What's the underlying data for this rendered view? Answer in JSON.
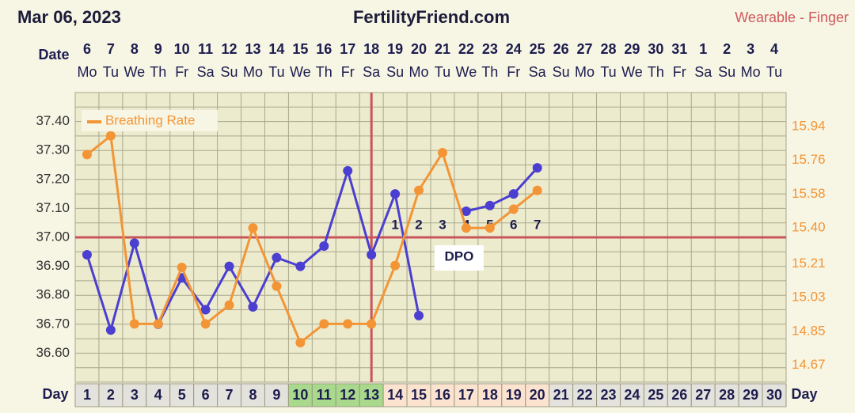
{
  "header": {
    "date": "Mar 06, 2023",
    "site": "FertilityFriend.com",
    "source": "Wearable - Finger"
  },
  "chart_data": {
    "type": "line",
    "x_label": "Day",
    "date_label": "Date",
    "categories": [
      "1",
      "2",
      "3",
      "4",
      "5",
      "6",
      "7",
      "8",
      "9",
      "10",
      "11",
      "12",
      "13",
      "14",
      "15",
      "16",
      "17",
      "18",
      "19",
      "20",
      "21",
      "22",
      "23",
      "24",
      "25",
      "26",
      "27",
      "28",
      "29",
      "30"
    ],
    "dates": [
      "6",
      "7",
      "8",
      "9",
      "10",
      "11",
      "12",
      "13",
      "14",
      "15",
      "16",
      "17",
      "18",
      "19",
      "20",
      "21",
      "22",
      "23",
      "24",
      "25",
      "26",
      "27",
      "28",
      "29",
      "30",
      "31",
      "1",
      "2",
      "3",
      "4"
    ],
    "weekdays": [
      "Mo",
      "Tu",
      "We",
      "Th",
      "Fr",
      "Sa",
      "Su",
      "Mo",
      "Tu",
      "We",
      "Th",
      "Fr",
      "Sa",
      "Su",
      "Mo",
      "Tu",
      "We",
      "Th",
      "Fr",
      "Sa",
      "Su",
      "Mo",
      "Tu",
      "We",
      "Th",
      "Fr",
      "Sa",
      "Su",
      "Mo",
      "Tu"
    ],
    "day_colors": [
      "#e4e2dc",
      "#e4e2dc",
      "#e4e2dc",
      "#e4e2dc",
      "#e4e2dc",
      "#e4e2dc",
      "#e4e2dc",
      "#e4e2dc",
      "#e4e2dc",
      "#a9d98c",
      "#a9d98c",
      "#a9d98c",
      "#a9d98c",
      "#fbe3cf",
      "#fbe3cf",
      "#fbe3cf",
      "#fbe3cf",
      "#fbe3cf",
      "#fbe3cf",
      "#fbe3cf",
      "#e4e2dc",
      "#e4e2dc",
      "#e4e2dc",
      "#e4e2dc",
      "#e4e2dc",
      "#e4e2dc",
      "#e4e2dc",
      "#e4e2dc",
      "#e4e2dc",
      "#e4e2dc"
    ],
    "ylim": [
      36.5,
      37.5
    ],
    "yticks": [
      {
        "value": 36.6,
        "label": "36.60"
      },
      {
        "value": 36.7,
        "label": "36.70"
      },
      {
        "value": 36.8,
        "label": "36.80"
      },
      {
        "value": 36.9,
        "label": "36.90"
      },
      {
        "value": 37.0,
        "label": "37.00"
      },
      {
        "value": 37.1,
        "label": "37.10"
      },
      {
        "value": 37.2,
        "label": "37.20"
      },
      {
        "value": 37.3,
        "label": "37.30"
      },
      {
        "value": 37.4,
        "label": "37.40"
      }
    ],
    "y_grid": [
      36.5,
      36.55,
      36.6,
      36.65,
      36.7,
      36.75,
      36.8,
      36.85,
      36.9,
      36.95,
      37.0,
      37.05,
      37.1,
      37.15,
      37.2,
      37.25,
      37.3,
      37.35,
      37.4,
      37.45,
      37.5
    ],
    "y2lim": [
      14.58,
      16.12
    ],
    "y2ticks": [
      14.67,
      14.85,
      15.03,
      15.21,
      {
        "value": 15.4,
        "label": "15.40"
      },
      15.58,
      15.76,
      15.94
    ],
    "coverline": 37.0,
    "ovulation_day": 13,
    "dpo_title": "DPO",
    "dpo_labels": [
      null,
      null,
      null,
      null,
      null,
      null,
      null,
      null,
      null,
      null,
      null,
      null,
      null,
      1,
      2,
      3,
      4,
      5,
      6,
      7,
      null,
      null,
      null,
      null,
      null,
      null,
      null,
      null,
      null,
      null
    ],
    "series": [
      {
        "color": "#4a3fd0",
        "axis": "y",
        "values": [
          36.94,
          36.68,
          36.98,
          36.7,
          36.86,
          36.75,
          36.9,
          36.76,
          36.93,
          36.9,
          36.97,
          37.23,
          36.94,
          37.15,
          36.73,
          null,
          37.09,
          37.11,
          37.15,
          37.24,
          null,
          null,
          null,
          null,
          null,
          null,
          null,
          null,
          null,
          null
        ]
      },
      {
        "name": "Breathing Rate",
        "color": "#f39536",
        "axis": "y2",
        "values": [
          15.79,
          15.89,
          14.89,
          14.89,
          15.19,
          14.89,
          14.99,
          15.4,
          15.09,
          14.79,
          14.89,
          14.89,
          14.89,
          15.2,
          15.6,
          15.8,
          15.4,
          15.4,
          15.5,
          15.6,
          null,
          null,
          null,
          null,
          null,
          null,
          null,
          null,
          null,
          null
        ]
      }
    ]
  }
}
